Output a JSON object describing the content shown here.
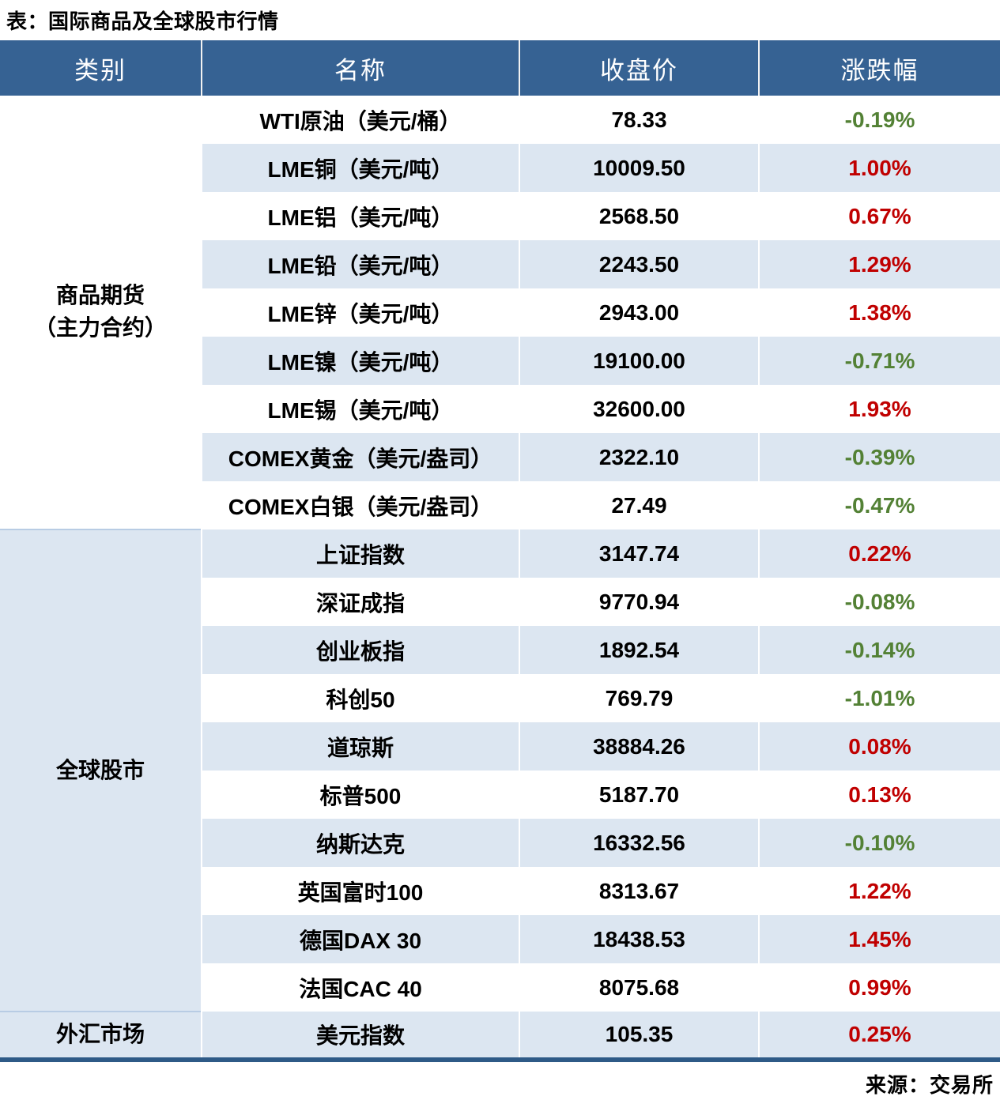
{
  "title": "表：国际商品及全球股市行情",
  "source": "来源：交易所",
  "colors": {
    "header_bg": "#366293",
    "header_text": "#ffffff",
    "row_alt_bg": "#dce6f1",
    "up_red": "#c00000",
    "down_green": "#538135",
    "bottom_border": "#2e5a87",
    "group_divider": "#b8cce4"
  },
  "chart_data": {
    "type": "table",
    "title": "表：国际商品及全球股市行情",
    "columns": [
      "类别",
      "名称",
      "收盘价",
      "涨跌幅"
    ],
    "groups": [
      {
        "category_lines": [
          "商品期货",
          "（主力合约）"
        ],
        "rows": [
          {
            "name": "WTI原油（美元/桶）",
            "close": "78.33",
            "change": "-0.19%"
          },
          {
            "name": "LME铜（美元/吨）",
            "close": "10009.50",
            "change": "1.00%"
          },
          {
            "name": "LME铝（美元/吨）",
            "close": "2568.50",
            "change": "0.67%"
          },
          {
            "name": "LME铅（美元/吨）",
            "close": "2243.50",
            "change": "1.29%"
          },
          {
            "name": "LME锌（美元/吨）",
            "close": "2943.00",
            "change": "1.38%"
          },
          {
            "name": "LME镍（美元/吨）",
            "close": "19100.00",
            "change": "-0.71%"
          },
          {
            "name": "LME锡（美元/吨）",
            "close": "32600.00",
            "change": "1.93%"
          },
          {
            "name": "COMEX黄金（美元/盎司）",
            "close": "2322.10",
            "change": "-0.39%"
          },
          {
            "name": "COMEX白银（美元/盎司）",
            "close": "27.49",
            "change": "-0.47%"
          }
        ]
      },
      {
        "category_lines": [
          "全球股市"
        ],
        "rows": [
          {
            "name": "上证指数",
            "close": "3147.74",
            "change": "0.22%"
          },
          {
            "name": "深证成指",
            "close": "9770.94",
            "change": "-0.08%"
          },
          {
            "name": "创业板指",
            "close": "1892.54",
            "change": "-0.14%"
          },
          {
            "name": "科创50",
            "close": "769.79",
            "change": "-1.01%"
          },
          {
            "name": "道琼斯",
            "close": "38884.26",
            "change": "0.08%"
          },
          {
            "name": "标普500",
            "close": "5187.70",
            "change": "0.13%"
          },
          {
            "name": "纳斯达克",
            "close": "16332.56",
            "change": "-0.10%"
          },
          {
            "name": "英国富时100",
            "close": "8313.67",
            "change": "1.22%"
          },
          {
            "name": "德国DAX 30",
            "close": "18438.53",
            "change": "1.45%"
          },
          {
            "name": "法国CAC 40",
            "close": "8075.68",
            "change": "0.99%"
          }
        ]
      },
      {
        "category_lines": [
          "外汇市场"
        ],
        "rows": [
          {
            "name": "美元指数",
            "close": "105.35",
            "change": "0.25%"
          }
        ]
      }
    ]
  }
}
